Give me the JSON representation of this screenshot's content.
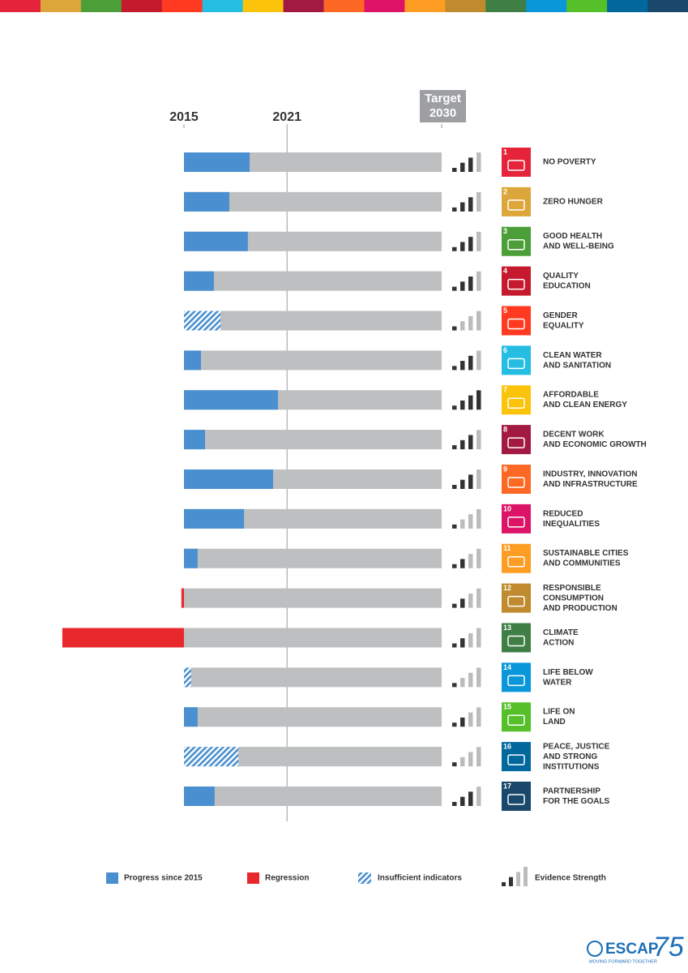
{
  "chart_data": {
    "type": "bar",
    "orientation": "horizontal",
    "xlim": [
      0,
      100
    ],
    "xticks": [
      {
        "value": 0,
        "label": "2015"
      },
      {
        "value": 40,
        "label": "2021"
      },
      {
        "value": 100,
        "label": "Target 2030"
      }
    ],
    "progress_color": "#4a8fcf",
    "regression_color": "#e8282d",
    "track_color": "#bdbfc0",
    "evidence_max": 4,
    "goals": [
      {
        "number": 1,
        "name": [
          "NO POVERTY"
        ],
        "color": "#e5243b",
        "progress": 25.5,
        "hatched": false,
        "evidence": 3
      },
      {
        "number": 2,
        "name": [
          "ZERO HUNGER"
        ],
        "color": "#dda63a",
        "progress": 17.6,
        "hatched": false,
        "evidence": 3
      },
      {
        "number": 3,
        "name": [
          "GOOD HEALTH",
          "AND WELL-BEING"
        ],
        "color": "#4c9f38",
        "progress": 24.8,
        "hatched": false,
        "evidence": 3
      },
      {
        "number": 4,
        "name": [
          "QUALITY",
          "EDUCATION"
        ],
        "color": "#c5192d",
        "progress": 11.6,
        "hatched": false,
        "evidence": 3
      },
      {
        "number": 5,
        "name": [
          "GENDER",
          "EQUALITY"
        ],
        "color": "#ff3a21",
        "progress": 14.2,
        "hatched": true,
        "evidence": 1
      },
      {
        "number": 6,
        "name": [
          "CLEAN WATER",
          "AND SANITATION"
        ],
        "color": "#26bde2",
        "progress": 6.6,
        "hatched": false,
        "evidence": 3
      },
      {
        "number": 7,
        "name": [
          "AFFORDABLE",
          "AND CLEAN ENERGY"
        ],
        "color": "#fcc30b",
        "progress": 36.5,
        "hatched": false,
        "evidence": 4
      },
      {
        "number": 8,
        "name": [
          "DECENT WORK",
          "AND ECONOMIC GROWTH"
        ],
        "color": "#a21942",
        "progress": 8.2,
        "hatched": false,
        "evidence": 3
      },
      {
        "number": 9,
        "name": [
          "INDUSTRY, INNOVATION",
          "AND INFRASTRUCTURE"
        ],
        "color": "#fd6925",
        "progress": 34.6,
        "hatched": false,
        "evidence": 3
      },
      {
        "number": 10,
        "name": [
          "REDUCED",
          "INEQUALITIES"
        ],
        "color": "#dd1367",
        "progress": 23.3,
        "hatched": false,
        "evidence": 1
      },
      {
        "number": 11,
        "name": [
          "SUSTAINABLE CITIES",
          "AND COMMUNITIES"
        ],
        "color": "#fd9d24",
        "progress": 5.3,
        "hatched": false,
        "evidence": 2
      },
      {
        "number": 12,
        "name": [
          "RESPONSIBLE",
          "CONSUMPTION",
          "AND PRODUCTION"
        ],
        "color": "#bf8b2e",
        "progress": -1,
        "hatched": false,
        "evidence": 2
      },
      {
        "number": 13,
        "name": [
          "CLIMATE",
          "ACTION"
        ],
        "color": "#3f7e44",
        "progress": -47.2,
        "hatched": false,
        "evidence": 2
      },
      {
        "number": 14,
        "name": [
          "LIFE BELOW",
          "WATER"
        ],
        "color": "#0a97d9",
        "progress": 2.8,
        "hatched": true,
        "evidence": 1
      },
      {
        "number": 15,
        "name": [
          "LIFE ON",
          "LAND"
        ],
        "color": "#56c02b",
        "progress": 5.3,
        "hatched": false,
        "evidence": 2
      },
      {
        "number": 16,
        "name": [
          "PEACE, JUSTICE",
          "AND STRONG",
          "INSTITUTIONS"
        ],
        "color": "#00689d",
        "progress": 21.1,
        "hatched": true,
        "evidence": 1
      },
      {
        "number": 17,
        "name": [
          "PARTNERSHIP",
          "FOR THE GOALS"
        ],
        "color": "#19486a",
        "progress": 11.9,
        "hatched": false,
        "evidence": 3
      }
    ],
    "legend": {
      "progress": "Progress since 2015",
      "regression": "Regression",
      "insufficient": "Insufficient indicators",
      "evidence": "Evidence Strength"
    }
  },
  "logo": {
    "name": "ESCAP",
    "number": 75,
    "tagline": "MOVING FORWARD TOGETHER"
  }
}
